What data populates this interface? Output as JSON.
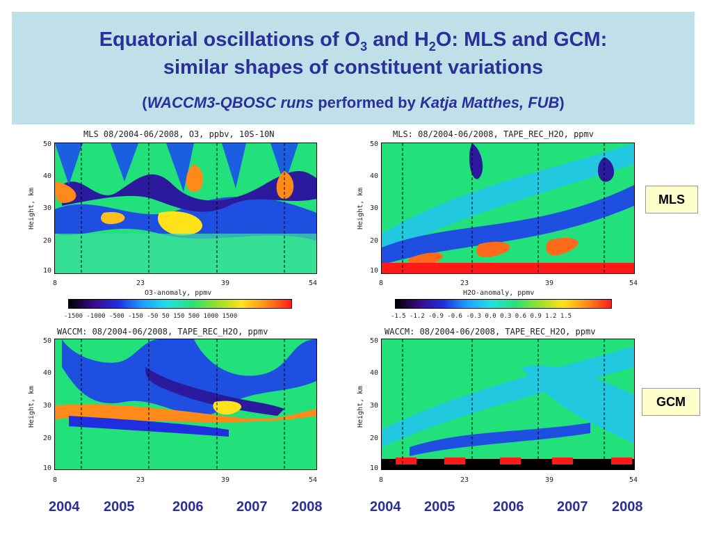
{
  "header": {
    "title_line1_a": "Equatorial oscillations of O",
    "title_line1_sub1": "3",
    "title_line1_b": " and H",
    "title_line1_sub2": "2",
    "title_line1_c": "O: MLS and GCM:",
    "title_line2": "similar shapes of constituent variations",
    "subtitle_open": "(",
    "subtitle_runs": "WACCM3-QBOSC runs",
    "subtitle_mid": " performed by ",
    "subtitle_author": "Katja Matthes, FUB",
    "subtitle_close": ")"
  },
  "panels": {
    "mls_o3": {
      "title": "MLS 08/2004-06/2008, O3, ppbv, 10S-10N",
      "ylabel": "Height, km"
    },
    "mls_h2o": {
      "title": "MLS: 08/2004-06/2008, TAPE_REC_H2O, ppmv",
      "ylabel": "Height, km"
    },
    "waccm_o3": {
      "title": "WACCM: 08/2004-06/2008, TAPE_REC_H2O, ppmv",
      "ylabel": "Height, km"
    },
    "waccm_h2o": {
      "title": "WACCM: 08/2004-06/2008, TAPE_REC_H2O, ppmv",
      "ylabel": "Height, km"
    }
  },
  "y_ticks": [
    "50",
    "40",
    "30",
    "20",
    "10"
  ],
  "x_ticks": [
    "8",
    "23",
    "39",
    "54"
  ],
  "colorbars": {
    "o3": {
      "label": "O3-anomaly, ppmv",
      "ticks": "-1500 -1000 -500  -150  -50   50  150   500 1000 1500"
    },
    "h2o": {
      "label": "H2O-anomaly, ppmv",
      "ticks": "-1.5 -1.2 -0.9 -0.6 -0.3  0.0  0.3  0.6  0.9  1.2 1.5"
    }
  },
  "badges": {
    "mls": "MLS",
    "gcm": "GCM"
  },
  "years_left": [
    "2004",
    "2005",
    "2006",
    "2007",
    "2008"
  ],
  "years_right": [
    "2004",
    "2005",
    "2006",
    "2007",
    "2008"
  ],
  "colors": {
    "title": "#2b2f9c",
    "header_bg": "#bfe0e8",
    "badge_bg": "#ffffcc"
  }
}
